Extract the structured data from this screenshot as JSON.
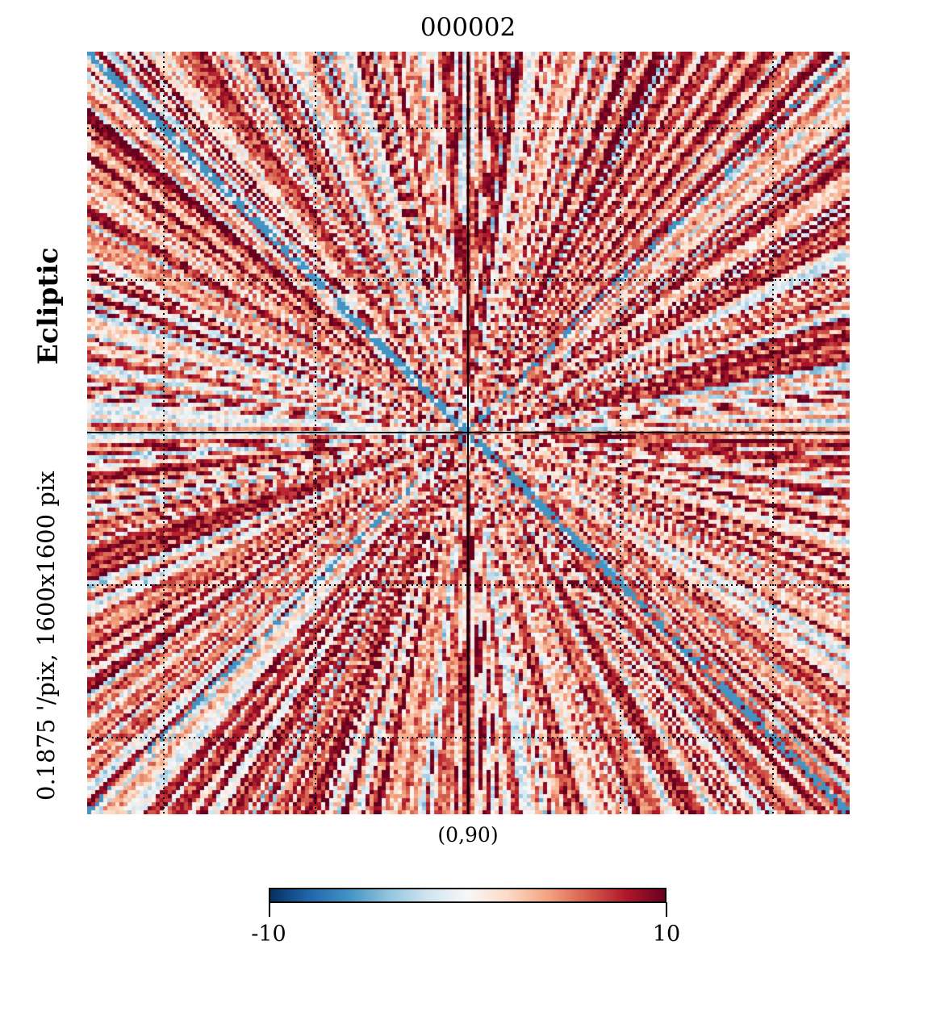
{
  "chart_data": {
    "type": "heatmap",
    "title": "000002",
    "projection": "gnomonic",
    "center_label": "(0,90)",
    "coord_label": "Ecliptic",
    "resolution_label": "0.1875 '/pix,   1600x1600 pix",
    "colormap": "RdBu_r",
    "vmin": -10,
    "vmax": 10,
    "colorbar_ticks": [
      "-10",
      "10"
    ],
    "graticule": true,
    "colors": {
      "min": "#053061",
      "mid": "#f7f7f7",
      "max": "#67001f"
    }
  }
}
